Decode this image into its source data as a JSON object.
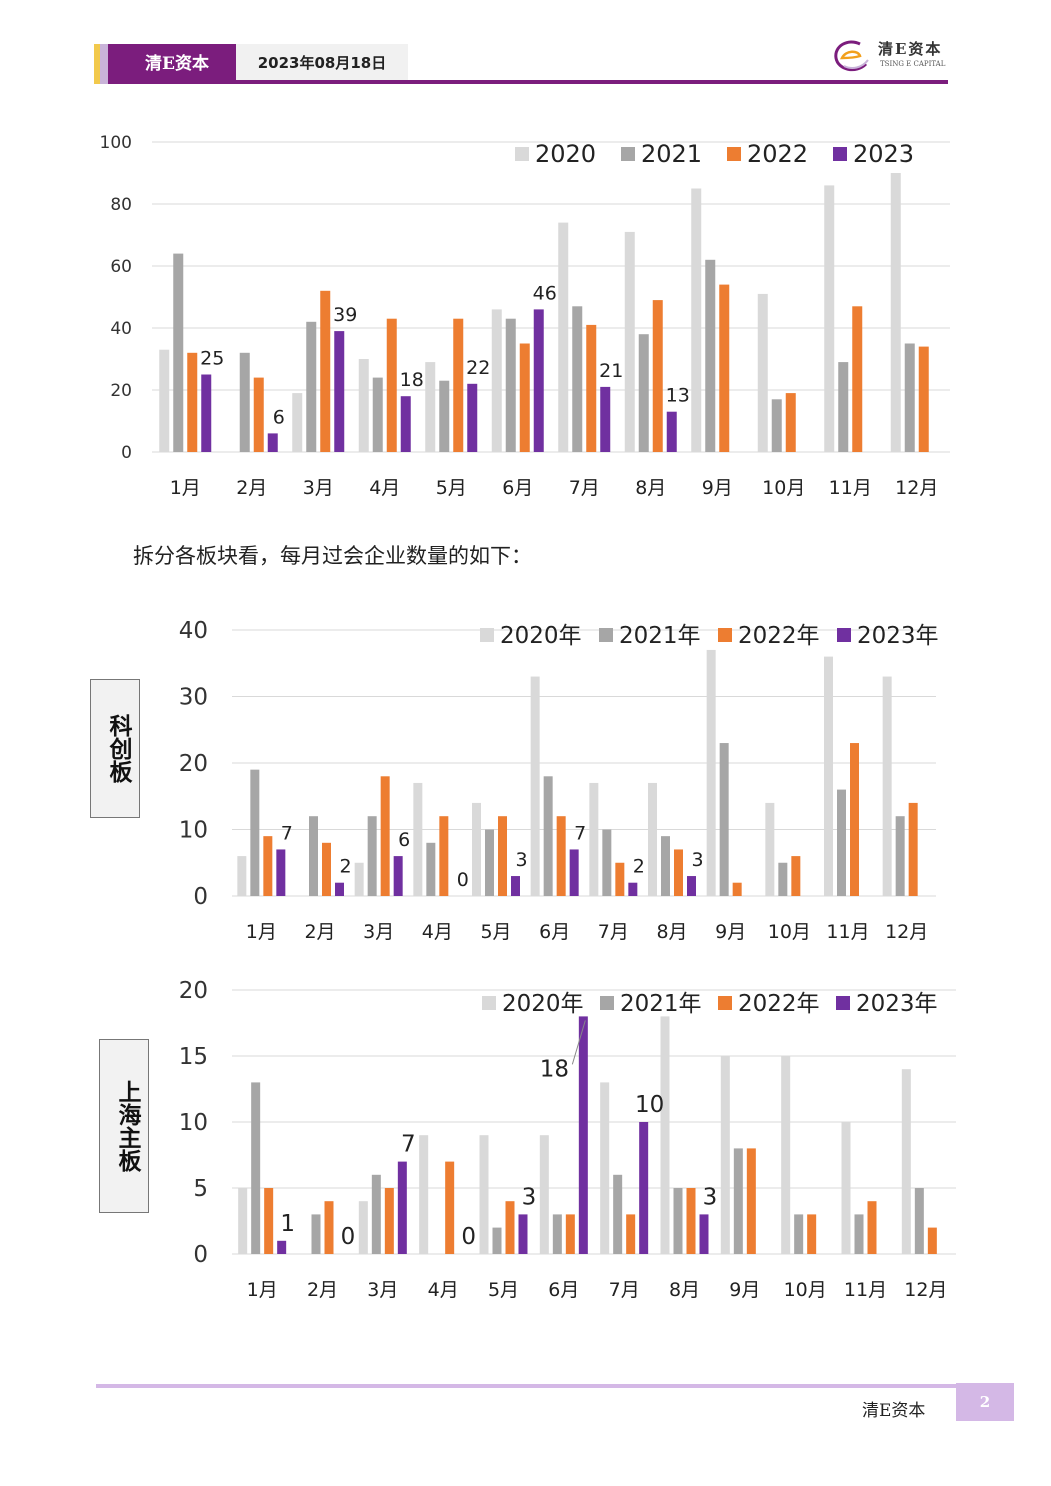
{
  "header": {
    "brand": "清E资本",
    "date": "2023年08月18日",
    "logo_cn": "清E资本",
    "logo_en": "TSING E CAPITAL"
  },
  "paragraph": "拆分各板块看，每月过会企业数量的如下：",
  "footer": {
    "brand": "清E资本",
    "page": "2"
  },
  "colors": {
    "brand_purple": "#7b1d7d",
    "light_purple": "#d4b8e6",
    "series": [
      "#d9d9d9",
      "#a6a6a6",
      "#ed7d31",
      "#7030a0"
    ]
  },
  "chart_data": [
    {
      "id": "total",
      "type": "bar",
      "title": "",
      "xlabel": "",
      "ylabel": "",
      "categories": [
        "1月",
        "2月",
        "3月",
        "4月",
        "5月",
        "6月",
        "7月",
        "8月",
        "9月",
        "10月",
        "11月",
        "12月"
      ],
      "ylim": [
        0,
        100
      ],
      "yticks": [
        "0",
        "20",
        "40",
        "60",
        "80",
        "100"
      ],
      "grid": true,
      "legend": "top-right",
      "series": [
        {
          "name": "2020",
          "values": [
            33,
            0,
            19,
            30,
            29,
            46,
            74,
            71,
            85,
            51,
            86,
            90
          ]
        },
        {
          "name": "2021",
          "values": [
            64,
            32,
            42,
            24,
            23,
            43,
            47,
            38,
            62,
            17,
            29,
            35
          ]
        },
        {
          "name": "2022",
          "values": [
            32,
            24,
            52,
            43,
            43,
            35,
            41,
            49,
            54,
            19,
            47,
            34
          ]
        },
        {
          "name": "2023",
          "values": [
            25,
            6,
            39,
            18,
            22,
            46,
            21,
            13,
            null,
            null,
            null,
            null
          ]
        }
      ],
      "data_labels": [
        "25",
        "6",
        "39",
        "18",
        "22",
        "46",
        "21",
        "13"
      ]
    },
    {
      "id": "star",
      "board_label": "科创板",
      "type": "bar",
      "title": "",
      "xlabel": "",
      "ylabel": "",
      "categories": [
        "1月",
        "2月",
        "3月",
        "4月",
        "5月",
        "6月",
        "7月",
        "8月",
        "9月",
        "10月",
        "11月",
        "12月"
      ],
      "ylim": [
        0,
        40
      ],
      "yticks": [
        "0",
        "10",
        "20",
        "30",
        "40"
      ],
      "grid": true,
      "legend": "top-right",
      "series": [
        {
          "name": "2020年",
          "values": [
            6,
            0,
            5,
            17,
            14,
            33,
            17,
            17,
            37,
            14,
            36,
            33
          ]
        },
        {
          "name": "2021年",
          "values": [
            19,
            12,
            12,
            8,
            10,
            18,
            10,
            9,
            23,
            5,
            16,
            12
          ]
        },
        {
          "name": "2022年",
          "values": [
            9,
            8,
            18,
            12,
            12,
            12,
            5,
            7,
            2,
            6,
            23,
            14
          ]
        },
        {
          "name": "2023年",
          "values": [
            7,
            2,
            6,
            0,
            3,
            7,
            2,
            3,
            null,
            null,
            null,
            null
          ]
        }
      ],
      "data_labels": [
        "7",
        "2",
        "6",
        "0",
        "3",
        "7",
        "2",
        "3"
      ]
    },
    {
      "id": "sh-main",
      "board_label": "上海主板",
      "type": "bar",
      "title": "",
      "xlabel": "",
      "ylabel": "",
      "categories": [
        "1月",
        "2月",
        "3月",
        "4月",
        "5月",
        "6月",
        "7月",
        "8月",
        "9月",
        "10月",
        "11月",
        "12月"
      ],
      "ylim": [
        0,
        20
      ],
      "yticks": [
        "0",
        "5",
        "10",
        "15",
        "20"
      ],
      "grid": true,
      "legend": "top-right",
      "series": [
        {
          "name": "2020年",
          "values": [
            5,
            0,
            4,
            9,
            9,
            9,
            13,
            18,
            15,
            15,
            10,
            14
          ]
        },
        {
          "name": "2021年",
          "values": [
            13,
            3,
            6,
            0,
            2,
            3,
            6,
            5,
            8,
            3,
            3,
            5
          ]
        },
        {
          "name": "2022年",
          "values": [
            5,
            4,
            5,
            7,
            4,
            3,
            3,
            5,
            8,
            3,
            4,
            2
          ]
        },
        {
          "name": "2023年",
          "values": [
            1,
            0,
            7,
            0,
            3,
            18,
            10,
            3,
            null,
            null,
            null,
            null
          ]
        }
      ],
      "data_labels": [
        "1",
        "0",
        "7",
        "0",
        "3",
        "18",
        "10",
        "3"
      ]
    }
  ]
}
